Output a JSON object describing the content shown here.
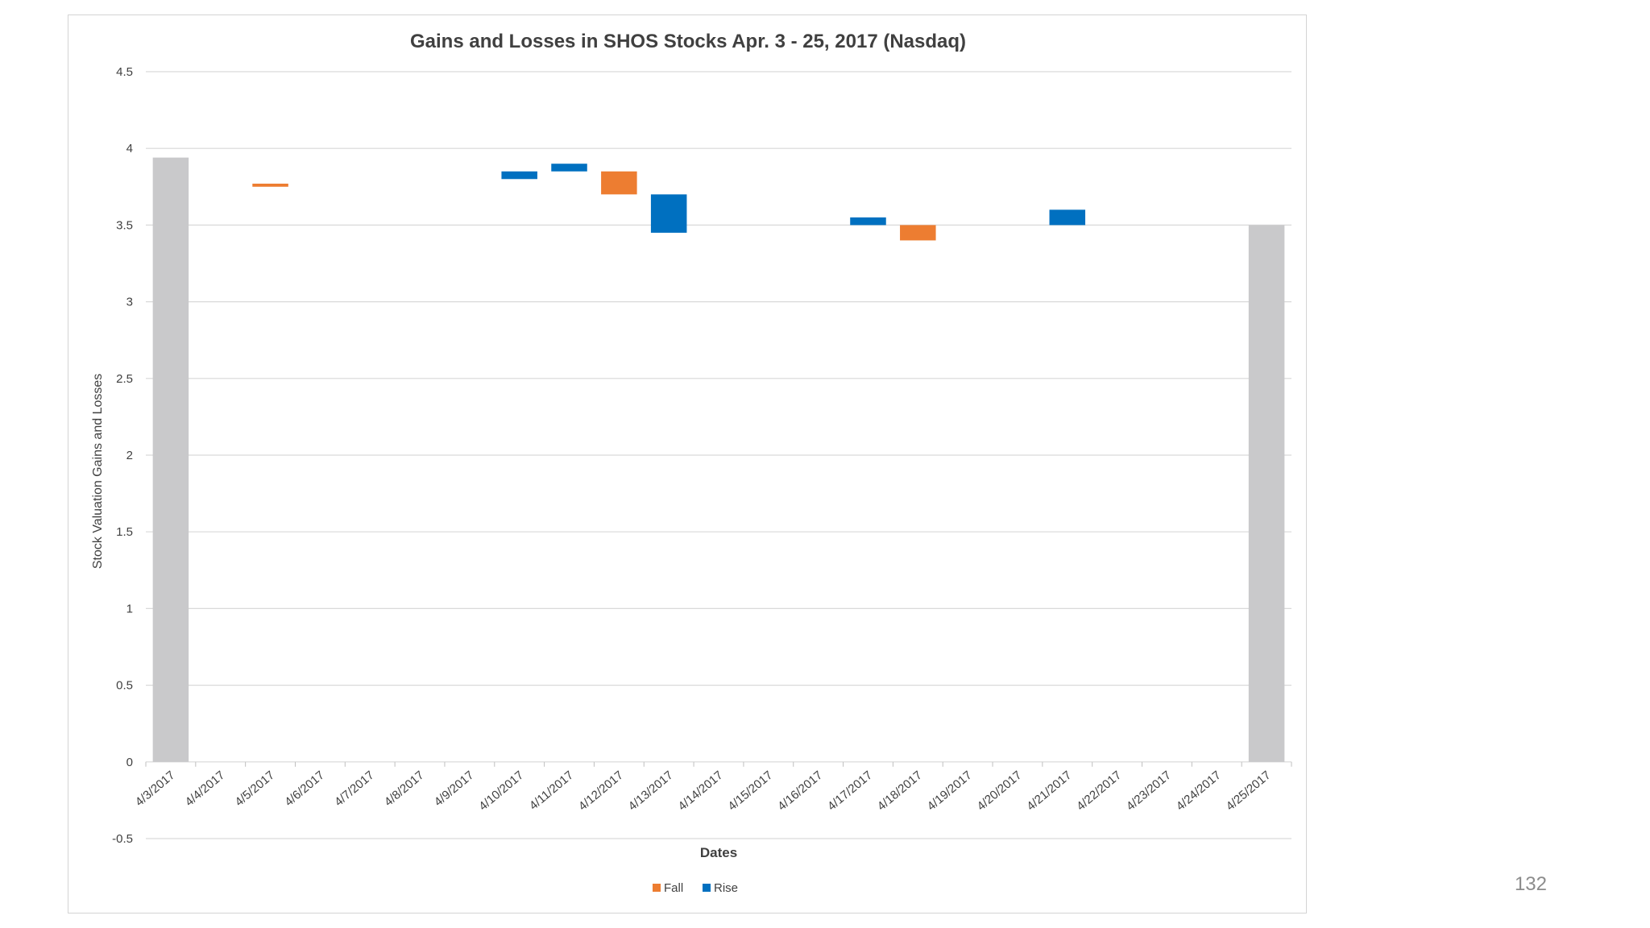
{
  "page": {
    "number": "132"
  },
  "chart_data": {
    "type": "bar",
    "subtype": "waterfall",
    "title": "Gains and Losses in SHOS Stocks Apr. 3 - 25, 2017 (Nasdaq)",
    "xlabel": "Dates",
    "ylabel": "Stock Valuation Gains and Losses",
    "ylim": [
      -0.5,
      4.5
    ],
    "yticks": [
      -0.5,
      0,
      0.5,
      1,
      1.5,
      2,
      2.5,
      3,
      3.5,
      4,
      4.5
    ],
    "ytick_labels": [
      "-0.5",
      "0",
      "0.5",
      "1",
      "1.5",
      "2",
      "2.5",
      "3",
      "3.5",
      "4",
      "4.5"
    ],
    "grid": true,
    "legend_position": "bottom",
    "legend": [
      {
        "name": "Fall",
        "color": "#ed7d31"
      },
      {
        "name": "Rise",
        "color": "#0070c0"
      }
    ],
    "categories": [
      "4/3/2017",
      "4/4/2017",
      "4/5/2017",
      "4/6/2017",
      "4/7/2017",
      "4/8/2017",
      "4/9/2017",
      "4/10/2017",
      "4/11/2017",
      "4/12/2017",
      "4/13/2017",
      "4/14/2017",
      "4/15/2017",
      "4/16/2017",
      "4/17/2017",
      "4/18/2017",
      "4/19/2017",
      "4/20/2017",
      "4/21/2017",
      "4/22/2017",
      "4/23/2017",
      "4/24/2017",
      "4/25/2017"
    ],
    "bars": [
      {
        "category": "4/3/2017",
        "kind": "total",
        "from": 0,
        "to": 3.94,
        "color": "#c9c9cb"
      },
      {
        "category": "4/5/2017",
        "kind": "fall",
        "from": 3.77,
        "to": 3.75,
        "color": "#ed7d31"
      },
      {
        "category": "4/10/2017",
        "kind": "rise",
        "from": 3.8,
        "to": 3.85,
        "color": "#0070c0"
      },
      {
        "category": "4/11/2017",
        "kind": "rise",
        "from": 3.85,
        "to": 3.9,
        "color": "#0070c0"
      },
      {
        "category": "4/12/2017",
        "kind": "fall",
        "from": 3.85,
        "to": 3.7,
        "color": "#ed7d31"
      },
      {
        "category": "4/13/2017",
        "kind": "rise",
        "from": 3.45,
        "to": 3.7,
        "color": "#0070c0"
      },
      {
        "category": "4/17/2017",
        "kind": "rise",
        "from": 3.5,
        "to": 3.55,
        "color": "#0070c0"
      },
      {
        "category": "4/18/2017",
        "kind": "fall",
        "from": 3.5,
        "to": 3.4,
        "color": "#ed7d31"
      },
      {
        "category": "4/21/2017",
        "kind": "rise",
        "from": 3.5,
        "to": 3.6,
        "color": "#0070c0"
      },
      {
        "category": "4/25/2017",
        "kind": "total",
        "from": 0,
        "to": 3.5,
        "color": "#c9c9cb"
      }
    ]
  }
}
